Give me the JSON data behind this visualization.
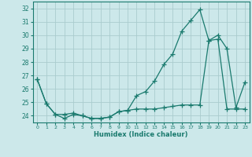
{
  "title": "",
  "xlabel": "Humidex (Indice chaleur)",
  "xlim": [
    -0.5,
    23.5
  ],
  "ylim": [
    23.5,
    32.5
  ],
  "yticks": [
    24,
    25,
    26,
    27,
    28,
    29,
    30,
    31,
    32
  ],
  "xticks": [
    0,
    1,
    2,
    3,
    4,
    5,
    6,
    7,
    8,
    9,
    10,
    11,
    12,
    13,
    14,
    15,
    16,
    17,
    18,
    19,
    20,
    21,
    22,
    23
  ],
  "bg_color": "#cce8ea",
  "grid_color": "#aaccce",
  "line_color": "#1a7a6e",
  "line1_x": [
    0,
    1,
    2,
    3,
    4,
    5,
    6,
    7,
    8,
    9,
    10,
    11,
    12,
    13,
    14,
    15,
    16,
    17,
    18,
    19,
    20,
    21,
    22,
    23
  ],
  "line1_y": [
    26.7,
    24.9,
    24.1,
    23.8,
    24.1,
    24.0,
    23.8,
    23.8,
    23.9,
    24.3,
    24.4,
    25.5,
    25.8,
    26.6,
    27.8,
    28.6,
    30.3,
    31.1,
    31.9,
    29.6,
    30.0,
    29.0,
    24.6,
    26.5
  ],
  "line2_x": [
    0,
    1,
    2,
    3,
    4,
    5,
    6,
    7,
    8,
    9,
    10,
    11,
    12,
    13,
    14,
    15,
    16,
    17,
    18,
    19,
    20,
    21,
    22,
    23
  ],
  "line2_y": [
    26.7,
    24.9,
    24.1,
    24.1,
    24.2,
    24.0,
    23.8,
    23.8,
    23.9,
    24.3,
    24.4,
    24.5,
    24.5,
    24.5,
    24.6,
    24.7,
    24.8,
    24.8,
    24.8,
    29.6,
    29.7,
    24.5,
    24.5,
    24.5
  ]
}
